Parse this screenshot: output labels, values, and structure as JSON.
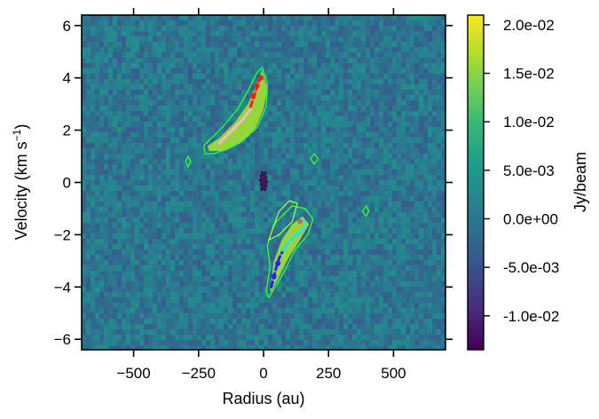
{
  "chart_data": {
    "type": "heatmap",
    "xlabel": "Radius (au)",
    "ylabel_main": "Velocity (km s",
    "ylabel_sup": "−1",
    "ylabel_close": ")",
    "xlim": [
      -700,
      700
    ],
    "ylim": [
      -6.4,
      6.4
    ],
    "x_ticks": [
      -500,
      -250,
      0,
      250,
      500
    ],
    "x_tick_labels": [
      "−500",
      "−250",
      "0",
      "250",
      "500"
    ],
    "y_ticks": [
      -6,
      -4,
      -2,
      0,
      2,
      4,
      6
    ],
    "y_tick_labels": [
      "−6",
      "−4",
      "−2",
      "0",
      "2",
      "4",
      "6"
    ],
    "colormap": "viridis",
    "colorbar": {
      "label": "Jy/beam",
      "vmin": -0.0135,
      "vmax": 0.021,
      "ticks": [
        -0.01,
        -0.005,
        0,
        0.005,
        0.01,
        0.015,
        0.02
      ],
      "tick_labels": [
        "-1.0e-02",
        "-5.0e-03",
        "0.0e+00",
        "5.0e-03",
        "1.0e-02",
        "1.5e-02",
        "2.0e-02"
      ]
    },
    "emission_features": [
      {
        "name": "redshifted arc",
        "polygon": [
          [
            -215,
            1.4
          ],
          [
            -170,
            1.7
          ],
          [
            -110,
            2.3
          ],
          [
            -60,
            3.0
          ],
          [
            -25,
            3.8
          ],
          [
            -5,
            4.3
          ],
          [
            15,
            3.6
          ],
          [
            0,
            2.8
          ],
          [
            -30,
            2.1
          ],
          [
            -90,
            1.5
          ],
          [
            -150,
            1.2
          ],
          [
            -210,
            1.2
          ]
        ],
        "peak_value": 0.016
      },
      {
        "name": "blueshifted arc",
        "polygon": [
          [
            25,
            -4.1
          ],
          [
            40,
            -3.0
          ],
          [
            70,
            -2.2
          ],
          [
            110,
            -1.6
          ],
          [
            150,
            -1.3
          ],
          [
            175,
            -1.6
          ],
          [
            140,
            -2.2
          ],
          [
            95,
            -2.9
          ],
          [
            55,
            -3.7
          ],
          [
            30,
            -4.2
          ]
        ],
        "peak_value": 0.016
      },
      {
        "name": "central spot",
        "polygon": [
          [
            -8,
            -0.3
          ],
          [
            -15,
            0.1
          ],
          [
            -8,
            0.4
          ],
          [
            8,
            0.4
          ],
          [
            15,
            0.0
          ],
          [
            8,
            -0.3
          ]
        ],
        "peak_value": -0.012
      }
    ],
    "contours": [
      {
        "color": "#33ff33",
        "points": [
          [
            -230,
            1.4
          ],
          [
            -200,
            1.7
          ],
          [
            -150,
            2.2
          ],
          [
            -100,
            2.8
          ],
          [
            -60,
            3.5
          ],
          [
            -25,
            4.2
          ],
          [
            -5,
            4.4
          ],
          [
            15,
            3.8
          ],
          [
            10,
            2.9
          ],
          [
            -25,
            2.1
          ],
          [
            -80,
            1.6
          ],
          [
            -140,
            1.3
          ],
          [
            -190,
            1.1
          ],
          [
            -225,
            1.1
          ]
        ]
      },
      {
        "color": "#33ff33",
        "points": [
          [
            10,
            -4.2
          ],
          [
            25,
            -3.2
          ],
          [
            15,
            -2.4
          ],
          [
            40,
            -1.6
          ],
          [
            80,
            -1.2
          ],
          [
            110,
            -0.9
          ],
          [
            160,
            -1.0
          ],
          [
            190,
            -1.4
          ],
          [
            170,
            -2.0
          ],
          [
            120,
            -2.6
          ],
          [
            80,
            -3.4
          ],
          [
            45,
            -4.0
          ],
          [
            20,
            -4.4
          ]
        ]
      },
      {
        "color": "#99ff44",
        "points": [
          [
            20,
            -2.2
          ],
          [
            60,
            -1.1
          ],
          [
            100,
            -0.7
          ],
          [
            130,
            -0.8
          ],
          [
            110,
            -1.5
          ],
          [
            60,
            -2.0
          ]
        ]
      },
      {
        "color": "#33ff33",
        "points": [
          [
            -300,
            0.8
          ],
          [
            -290,
            1.0
          ],
          [
            -280,
            0.8
          ],
          [
            -290,
            0.6
          ]
        ]
      },
      {
        "color": "#33ff33",
        "points": [
          [
            180,
            0.9
          ],
          [
            195,
            1.1
          ],
          [
            210,
            0.9
          ],
          [
            195,
            0.7
          ]
        ]
      },
      {
        "color": "#33ff33",
        "points": [
          [
            380,
            -1.1
          ],
          [
            395,
            -0.9
          ],
          [
            405,
            -1.1
          ],
          [
            395,
            -1.3
          ]
        ]
      },
      {
        "color": "#1a1a1a",
        "dashed": true,
        "points": [
          [
            -8,
            -0.3
          ],
          [
            -15,
            0.1
          ],
          [
            -8,
            0.4
          ],
          [
            8,
            0.4
          ],
          [
            15,
            0.0
          ],
          [
            8,
            -0.3
          ],
          [
            -8,
            -0.3
          ]
        ]
      }
    ],
    "model_curves": [
      {
        "color": "#ff1a1a",
        "dashed": true,
        "points": [
          [
            -50,
            2.9
          ],
          [
            -40,
            3.2
          ],
          [
            -30,
            3.5
          ],
          [
            -20,
            3.8
          ],
          [
            -10,
            4.1
          ]
        ]
      },
      {
        "color": "#f4b8c8",
        "points": [
          [
            -170,
            1.5
          ],
          [
            -140,
            1.8
          ],
          [
            -110,
            2.1
          ],
          [
            -80,
            2.4
          ],
          [
            -50,
            2.8
          ]
        ]
      },
      {
        "color": "#2222ff",
        "dashed": true,
        "points": [
          [
            30,
            -4.0
          ],
          [
            40,
            -3.6
          ],
          [
            50,
            -3.2
          ],
          [
            60,
            -2.9
          ],
          [
            75,
            -2.6
          ]
        ]
      },
      {
        "color": "#22e5e5",
        "points": [
          [
            75,
            -2.6
          ],
          [
            95,
            -2.3
          ],
          [
            115,
            -2.1
          ],
          [
            140,
            -1.9
          ],
          [
            160,
            -1.7
          ]
        ]
      }
    ],
    "markers": [
      {
        "x": -40,
        "y": 3.3,
        "color": "#ff1a1a"
      },
      {
        "x": -25,
        "y": 3.7,
        "color": "#ff1a1a"
      },
      {
        "x": -10,
        "y": 4.0,
        "color": "#ff1a1a"
      },
      {
        "x": 40,
        "y": -3.6,
        "color": "#2222ff"
      },
      {
        "x": 55,
        "y": -3.1,
        "color": "#2222ff"
      },
      {
        "x": 150,
        "y": -1.5,
        "color": "#22e5e5"
      },
      {
        "x": 140,
        "y": -1.5,
        "color": "#cc6666"
      }
    ]
  }
}
